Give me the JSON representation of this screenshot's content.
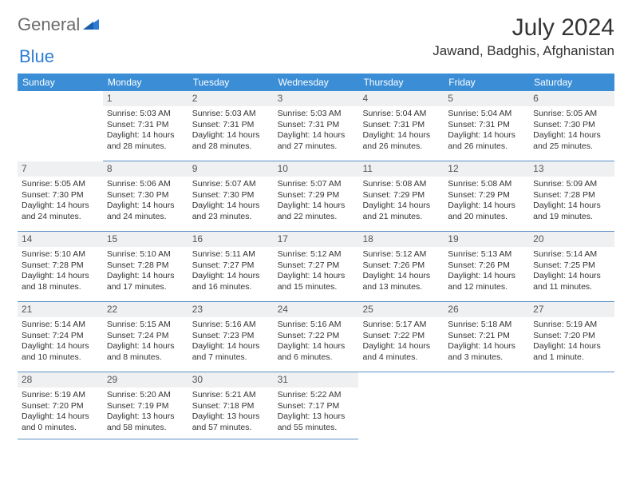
{
  "logo": {
    "text1": "General",
    "text2": "Blue"
  },
  "title": "July 2024",
  "location": "Jawand, Badghis, Afghanistan",
  "day_headers": [
    "Sunday",
    "Monday",
    "Tuesday",
    "Wednesday",
    "Thursday",
    "Friday",
    "Saturday"
  ],
  "colors": {
    "header_bg": "#3b8ed6",
    "header_fg": "#ffffff",
    "daynum_bg": "#eff0f1",
    "border": "#5a8fc4",
    "logo_gray": "#6b6b6b",
    "logo_blue": "#2e7cd6"
  },
  "weeks": [
    [
      {
        "n": "",
        "lines": []
      },
      {
        "n": "1",
        "lines": [
          "Sunrise: 5:03 AM",
          "Sunset: 7:31 PM",
          "Daylight: 14 hours and 28 minutes."
        ]
      },
      {
        "n": "2",
        "lines": [
          "Sunrise: 5:03 AM",
          "Sunset: 7:31 PM",
          "Daylight: 14 hours and 28 minutes."
        ]
      },
      {
        "n": "3",
        "lines": [
          "Sunrise: 5:03 AM",
          "Sunset: 7:31 PM",
          "Daylight: 14 hours and 27 minutes."
        ]
      },
      {
        "n": "4",
        "lines": [
          "Sunrise: 5:04 AM",
          "Sunset: 7:31 PM",
          "Daylight: 14 hours and 26 minutes."
        ]
      },
      {
        "n": "5",
        "lines": [
          "Sunrise: 5:04 AM",
          "Sunset: 7:31 PM",
          "Daylight: 14 hours and 26 minutes."
        ]
      },
      {
        "n": "6",
        "lines": [
          "Sunrise: 5:05 AM",
          "Sunset: 7:30 PM",
          "Daylight: 14 hours and 25 minutes."
        ]
      }
    ],
    [
      {
        "n": "7",
        "lines": [
          "Sunrise: 5:05 AM",
          "Sunset: 7:30 PM",
          "Daylight: 14 hours and 24 minutes."
        ]
      },
      {
        "n": "8",
        "lines": [
          "Sunrise: 5:06 AM",
          "Sunset: 7:30 PM",
          "Daylight: 14 hours and 24 minutes."
        ]
      },
      {
        "n": "9",
        "lines": [
          "Sunrise: 5:07 AM",
          "Sunset: 7:30 PM",
          "Daylight: 14 hours and 23 minutes."
        ]
      },
      {
        "n": "10",
        "lines": [
          "Sunrise: 5:07 AM",
          "Sunset: 7:29 PM",
          "Daylight: 14 hours and 22 minutes."
        ]
      },
      {
        "n": "11",
        "lines": [
          "Sunrise: 5:08 AM",
          "Sunset: 7:29 PM",
          "Daylight: 14 hours and 21 minutes."
        ]
      },
      {
        "n": "12",
        "lines": [
          "Sunrise: 5:08 AM",
          "Sunset: 7:29 PM",
          "Daylight: 14 hours and 20 minutes."
        ]
      },
      {
        "n": "13",
        "lines": [
          "Sunrise: 5:09 AM",
          "Sunset: 7:28 PM",
          "Daylight: 14 hours and 19 minutes."
        ]
      }
    ],
    [
      {
        "n": "14",
        "lines": [
          "Sunrise: 5:10 AM",
          "Sunset: 7:28 PM",
          "Daylight: 14 hours and 18 minutes."
        ]
      },
      {
        "n": "15",
        "lines": [
          "Sunrise: 5:10 AM",
          "Sunset: 7:28 PM",
          "Daylight: 14 hours and 17 minutes."
        ]
      },
      {
        "n": "16",
        "lines": [
          "Sunrise: 5:11 AM",
          "Sunset: 7:27 PM",
          "Daylight: 14 hours and 16 minutes."
        ]
      },
      {
        "n": "17",
        "lines": [
          "Sunrise: 5:12 AM",
          "Sunset: 7:27 PM",
          "Daylight: 14 hours and 15 minutes."
        ]
      },
      {
        "n": "18",
        "lines": [
          "Sunrise: 5:12 AM",
          "Sunset: 7:26 PM",
          "Daylight: 14 hours and 13 minutes."
        ]
      },
      {
        "n": "19",
        "lines": [
          "Sunrise: 5:13 AM",
          "Sunset: 7:26 PM",
          "Daylight: 14 hours and 12 minutes."
        ]
      },
      {
        "n": "20",
        "lines": [
          "Sunrise: 5:14 AM",
          "Sunset: 7:25 PM",
          "Daylight: 14 hours and 11 minutes."
        ]
      }
    ],
    [
      {
        "n": "21",
        "lines": [
          "Sunrise: 5:14 AM",
          "Sunset: 7:24 PM",
          "Daylight: 14 hours and 10 minutes."
        ]
      },
      {
        "n": "22",
        "lines": [
          "Sunrise: 5:15 AM",
          "Sunset: 7:24 PM",
          "Daylight: 14 hours and 8 minutes."
        ]
      },
      {
        "n": "23",
        "lines": [
          "Sunrise: 5:16 AM",
          "Sunset: 7:23 PM",
          "Daylight: 14 hours and 7 minutes."
        ]
      },
      {
        "n": "24",
        "lines": [
          "Sunrise: 5:16 AM",
          "Sunset: 7:22 PM",
          "Daylight: 14 hours and 6 minutes."
        ]
      },
      {
        "n": "25",
        "lines": [
          "Sunrise: 5:17 AM",
          "Sunset: 7:22 PM",
          "Daylight: 14 hours and 4 minutes."
        ]
      },
      {
        "n": "26",
        "lines": [
          "Sunrise: 5:18 AM",
          "Sunset: 7:21 PM",
          "Daylight: 14 hours and 3 minutes."
        ]
      },
      {
        "n": "27",
        "lines": [
          "Sunrise: 5:19 AM",
          "Sunset: 7:20 PM",
          "Daylight: 14 hours and 1 minute."
        ]
      }
    ],
    [
      {
        "n": "28",
        "lines": [
          "Sunrise: 5:19 AM",
          "Sunset: 7:20 PM",
          "Daylight: 14 hours and 0 minutes."
        ]
      },
      {
        "n": "29",
        "lines": [
          "Sunrise: 5:20 AM",
          "Sunset: 7:19 PM",
          "Daylight: 13 hours and 58 minutes."
        ]
      },
      {
        "n": "30",
        "lines": [
          "Sunrise: 5:21 AM",
          "Sunset: 7:18 PM",
          "Daylight: 13 hours and 57 minutes."
        ]
      },
      {
        "n": "31",
        "lines": [
          "Sunrise: 5:22 AM",
          "Sunset: 7:17 PM",
          "Daylight: 13 hours and 55 minutes."
        ]
      },
      {
        "n": "",
        "lines": []
      },
      {
        "n": "",
        "lines": []
      },
      {
        "n": "",
        "lines": []
      }
    ]
  ]
}
